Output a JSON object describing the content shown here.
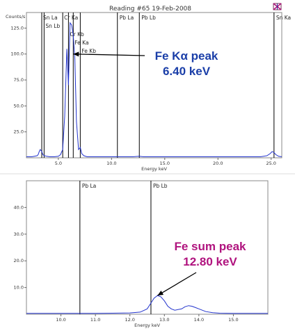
{
  "app": {
    "title": "Reading #65 19-Feb-2008",
    "window_icon": "flag-icon"
  },
  "colors": {
    "spectrum": "#2233cc",
    "marker_line": "#000000",
    "annotation_blue": "#1a3ea8",
    "annotation_magenta": "#b0137e",
    "grid": "#bbbbbb"
  },
  "chart_data": [
    {
      "type": "line",
      "ylabel": "Counts/s",
      "xlabel": "Energy keV",
      "xlim": [
        2.0,
        26.0
      ],
      "ylim": [
        0,
        140
      ],
      "x_ticks": [
        5.0,
        10.0,
        15.0,
        20.0,
        25.0
      ],
      "x_tick_labels": [
        "5.0",
        "10.0",
        "15.0",
        "20.0",
        "25.0"
      ],
      "y_ticks": [
        25,
        50,
        75,
        100,
        125
      ],
      "y_tick_labels": [
        "25.0",
        "50.0",
        "75.0",
        "100.0",
        "125.0"
      ],
      "markers": [
        {
          "label": "Sn La",
          "energy": 3.44,
          "row": 0
        },
        {
          "label": "Sn Lb",
          "energy": 3.66,
          "row": 1
        },
        {
          "label": "Cr Ka",
          "energy": 5.41,
          "row": 0
        },
        {
          "label": "Cr Kb",
          "energy": 5.95,
          "row": 2
        },
        {
          "label": "Fe Ka",
          "energy": 6.4,
          "row": 3
        },
        {
          "label": "Fe Kb",
          "energy": 7.06,
          "row": 4
        },
        {
          "label": "Pb La",
          "energy": 10.55,
          "row": 0
        },
        {
          "label": "Pb Lb",
          "energy": 12.61,
          "row": 0
        },
        {
          "label": "Sn Ka",
          "energy": 25.27,
          "row": 0
        }
      ],
      "series": [
        {
          "x": [
            2.0,
            2.5,
            3.0,
            3.1,
            3.2,
            3.3,
            3.44,
            3.55,
            3.7,
            3.9,
            4.2,
            4.6,
            5.0,
            5.2,
            5.41,
            5.6,
            5.8,
            5.95,
            6.1,
            6.25,
            6.4,
            6.55,
            6.7,
            6.9,
            7.06,
            7.2,
            7.4,
            7.7,
            8.0,
            9.0,
            10.0,
            10.5,
            11.0,
            12.0,
            12.6,
            13.0,
            14.0,
            16.0,
            18.0,
            20.0,
            22.0,
            24.0,
            24.6,
            24.9,
            25.1,
            25.27,
            25.45,
            25.7,
            26.0
          ],
          "y": [
            1,
            1,
            2,
            3,
            6,
            8,
            6,
            3,
            2,
            1.5,
            1,
            1,
            1.5,
            3,
            8,
            40,
            105,
            70,
            130,
            128,
            118,
            95,
            35,
            8,
            10,
            4,
            2,
            1,
            1,
            1,
            1,
            1,
            1,
            1,
            1.5,
            1,
            1,
            1,
            1,
            1,
            1,
            1,
            2,
            4,
            6,
            5,
            3,
            1.5,
            1
          ]
        }
      ],
      "annotation": {
        "line1": "Fe Kα peak",
        "line2": "6.40 keV",
        "target_x": 6.4,
        "target_y": 100
      }
    },
    {
      "type": "line",
      "xlabel": "Energy keV",
      "xlim": [
        9.0,
        16.0
      ],
      "ylim": [
        0,
        50
      ],
      "x_ticks": [
        10.0,
        11.0,
        12.0,
        13.0,
        14.0,
        15.0
      ],
      "x_tick_labels": [
        "10.0",
        "11.0",
        "12.0",
        "13.0",
        "14.0",
        "15.0"
      ],
      "y_ticks": [
        10,
        20,
        30,
        40
      ],
      "y_tick_labels": [
        "10.0",
        "20.0",
        "30.0",
        "40.0"
      ],
      "markers": [
        {
          "label": "Pb La",
          "energy": 10.55,
          "row": 0
        },
        {
          "label": "Pb Lb",
          "energy": 12.61,
          "row": 0
        }
      ],
      "series": [
        {
          "x": [
            9.0,
            9.5,
            10.0,
            10.5,
            11.0,
            11.5,
            12.0,
            12.3,
            12.5,
            12.6,
            12.7,
            12.8,
            12.9,
            13.0,
            13.1,
            13.2,
            13.3,
            13.5,
            13.6,
            13.7,
            13.8,
            13.9,
            14.0,
            14.2,
            14.4,
            14.6,
            15.0,
            15.5,
            16.0
          ],
          "y": [
            0.3,
            0.3,
            0.3,
            0.3,
            0.3,
            0.4,
            0.5,
            0.8,
            2,
            4,
            6,
            7,
            6.5,
            5,
            3,
            2,
            1.5,
            2,
            2.8,
            3.2,
            3,
            2.5,
            2,
            1,
            0.6,
            0.4,
            0.3,
            0.3,
            0.3
          ]
        }
      ],
      "annotation": {
        "line1": "Fe sum peak",
        "line2": "12.80 keV",
        "target_x": 12.8,
        "target_y": 7
      }
    }
  ]
}
